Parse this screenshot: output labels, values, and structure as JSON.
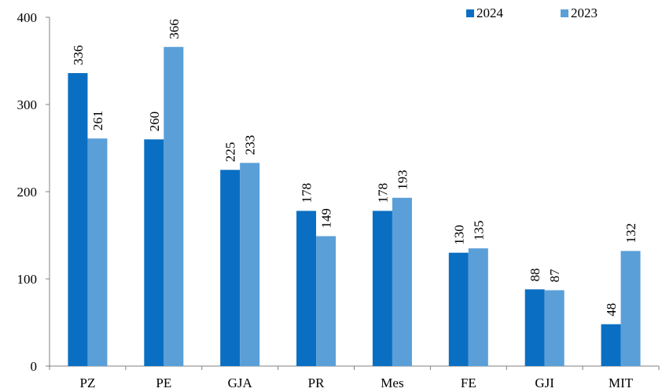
{
  "chart_data": {
    "type": "bar",
    "categories": [
      "PZ",
      "PE",
      "GJA",
      "PR",
      "Mes",
      "FE",
      "GJI",
      "MIT"
    ],
    "series": [
      {
        "name": "2024",
        "color": "#0a6fc2",
        "values": [
          336,
          260,
          225,
          178,
          178,
          130,
          88,
          48
        ]
      },
      {
        "name": "2023",
        "color": "#5a9fd8",
        "values": [
          261,
          366,
          233,
          149,
          193,
          135,
          87,
          132
        ]
      }
    ],
    "ylim": [
      0,
      400
    ],
    "yticks": [
      "0",
      "100",
      "200",
      "300",
      "400"
    ],
    "grid": false,
    "legend_position": "top-right",
    "data_labels": true
  }
}
